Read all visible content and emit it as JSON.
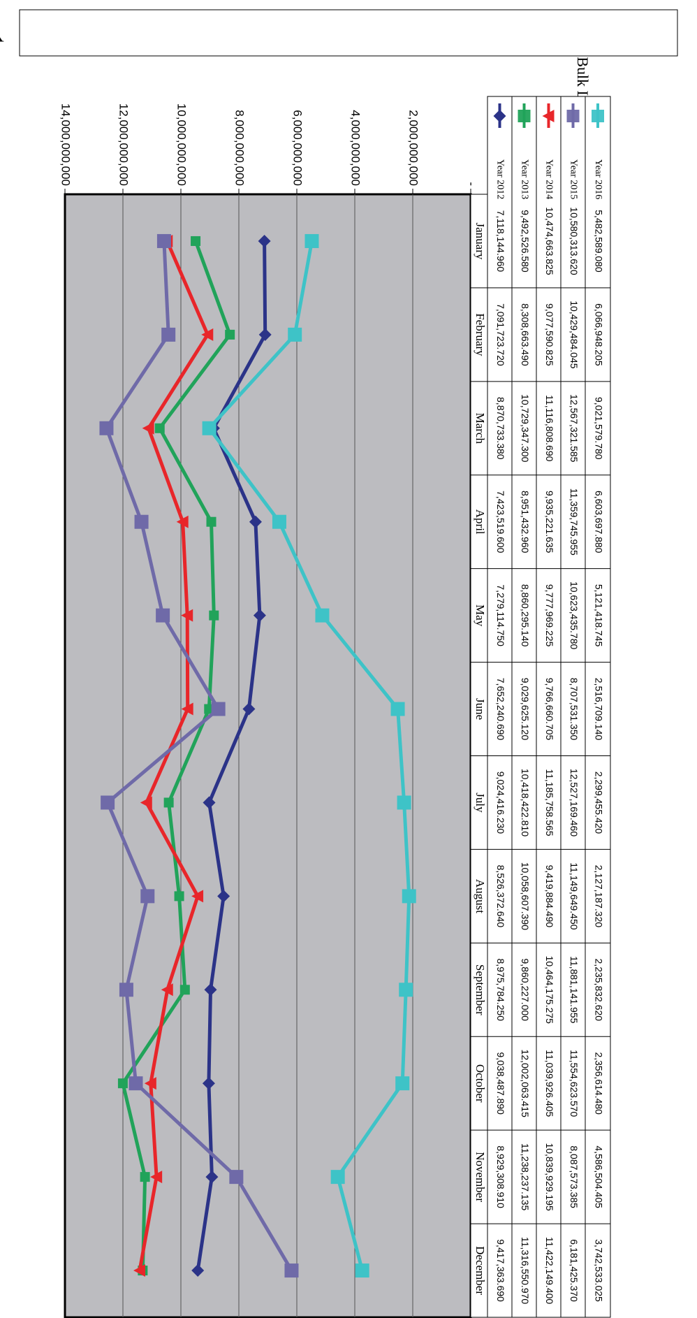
{
  "chart_data": {
    "type": "line",
    "title": "",
    "ylabel": "Bulk Ltrs.",
    "xlabel": "",
    "ylim": [
      0,
      14000000000
    ],
    "yticks": [
      0,
      2000000000,
      4000000000,
      6000000000,
      8000000000,
      10000000000,
      12000000000,
      14000000000
    ],
    "ytick_labels": [
      "-",
      "2,000,000,000",
      "4,000,000,000",
      "6,000,000,000",
      "8,000,000,000",
      "10,000,000,000",
      "12,000,000,000",
      "14,000,000,000"
    ],
    "grid": true,
    "legend_position": "top",
    "categories": [
      "January",
      "February",
      "March",
      "April",
      "May",
      "June",
      "July",
      "August",
      "September",
      "October",
      "November",
      "December"
    ],
    "series": [
      {
        "name": "Year 2012",
        "color": "#2b3388",
        "marker": "diamond",
        "values": [
          7118144.96,
          7091723.72,
          8870733.38,
          7423519.6,
          7279114.75,
          7652240.69,
          9024416.23,
          8526372.64,
          8975784.25,
          9038487.89,
          8929308.91,
          9417363.69
        ],
        "labels": [
          "7,118,144.960",
          "7,091,723.720",
          "8,870,733.380",
          "7,423,519.600",
          "7,279,114.750",
          "7,652,240.690",
          "9,024,416.230",
          "8,526,372.640",
          "8,975,784.250",
          "9,038,487.890",
          "8,929,308.910",
          "9,417,363.690"
        ]
      },
      {
        "name": "Year 2013",
        "color": "#21a35a",
        "marker": "square",
        "values": [
          9492526.58,
          8308663.49,
          10729347.3,
          8951432.96,
          8860295.14,
          9029625.12,
          10418422.81,
          10058607.39,
          9860227.0,
          12002063.415,
          11238237.135,
          11316550.97
        ],
        "labels": [
          "9,492,526.580",
          "8,308,663.490",
          "10,729,347.300",
          "8,951,432.960",
          "8,860,295.140",
          "9,029,625.120",
          "10,418,422.810",
          "10,058,607.390",
          "9,860,227.000",
          "12,002,063.415",
          "11,238,237.135",
          "11,316,550.970"
        ]
      },
      {
        "name": "Year 2014",
        "color": "#e8262a",
        "marker": "triangle",
        "values": [
          10474663.825,
          9077590.825,
          11116808.69,
          9935221.635,
          9777969.225,
          9766660.705,
          11185758.565,
          9419884.49,
          10464175.275,
          11039926.405,
          10839929.195,
          11422149.4
        ],
        "labels": [
          "10,474,663.825",
          "9,077,590.825",
          "11,116,808.690",
          "9,935,221.635",
          "9,777,969.225",
          "9,766,660.705",
          "11,185,758.565",
          "9,419,884.490",
          "10,464,175.275",
          "11,039,926.405",
          "10,839,929.195",
          "11,422,149.400"
        ]
      },
      {
        "name": "Year 2015",
        "color": "#6f6aa8",
        "marker": "square",
        "values": [
          10580313.62,
          10429484.045,
          12567321.585,
          11359745.955,
          10623435.78,
          8707531.35,
          12527169.46,
          11149649.45,
          11881141.955,
          11554623.57,
          8087573.385,
          6181425.37
        ],
        "labels": [
          "10,580,313.620",
          "10,429,484.045",
          "12,567,321.585",
          "11,359,745.955",
          "10,623,435.780",
          "8,707,531.350",
          "12,527,169.460",
          "11,149,649.450",
          "11,881,141.955",
          "11,554,623.570",
          "8,087,573.385",
          "6,181,425.370"
        ]
      },
      {
        "name": "Year 2016",
        "color": "#3ec3c7",
        "marker": "square",
        "values": [
          5482589.08,
          6066948.205,
          9021579.78,
          6603697.88,
          5121418.745,
          2516709.14,
          2299455.42,
          2127187.32,
          2235832.62,
          2356614.48,
          4586504.405,
          3742533.025
        ],
        "labels": [
          "5,482,589.080",
          "6,066,948.205",
          "9,021,579.780",
          "6,603,697.880",
          "5,121,418.745",
          "2,516,709.140",
          "2,299,455.420",
          "2,127,187.320",
          "2,235,832.620",
          "2,356,614.480",
          "4,586,504.405",
          "3,742,533.025"
        ]
      }
    ]
  }
}
